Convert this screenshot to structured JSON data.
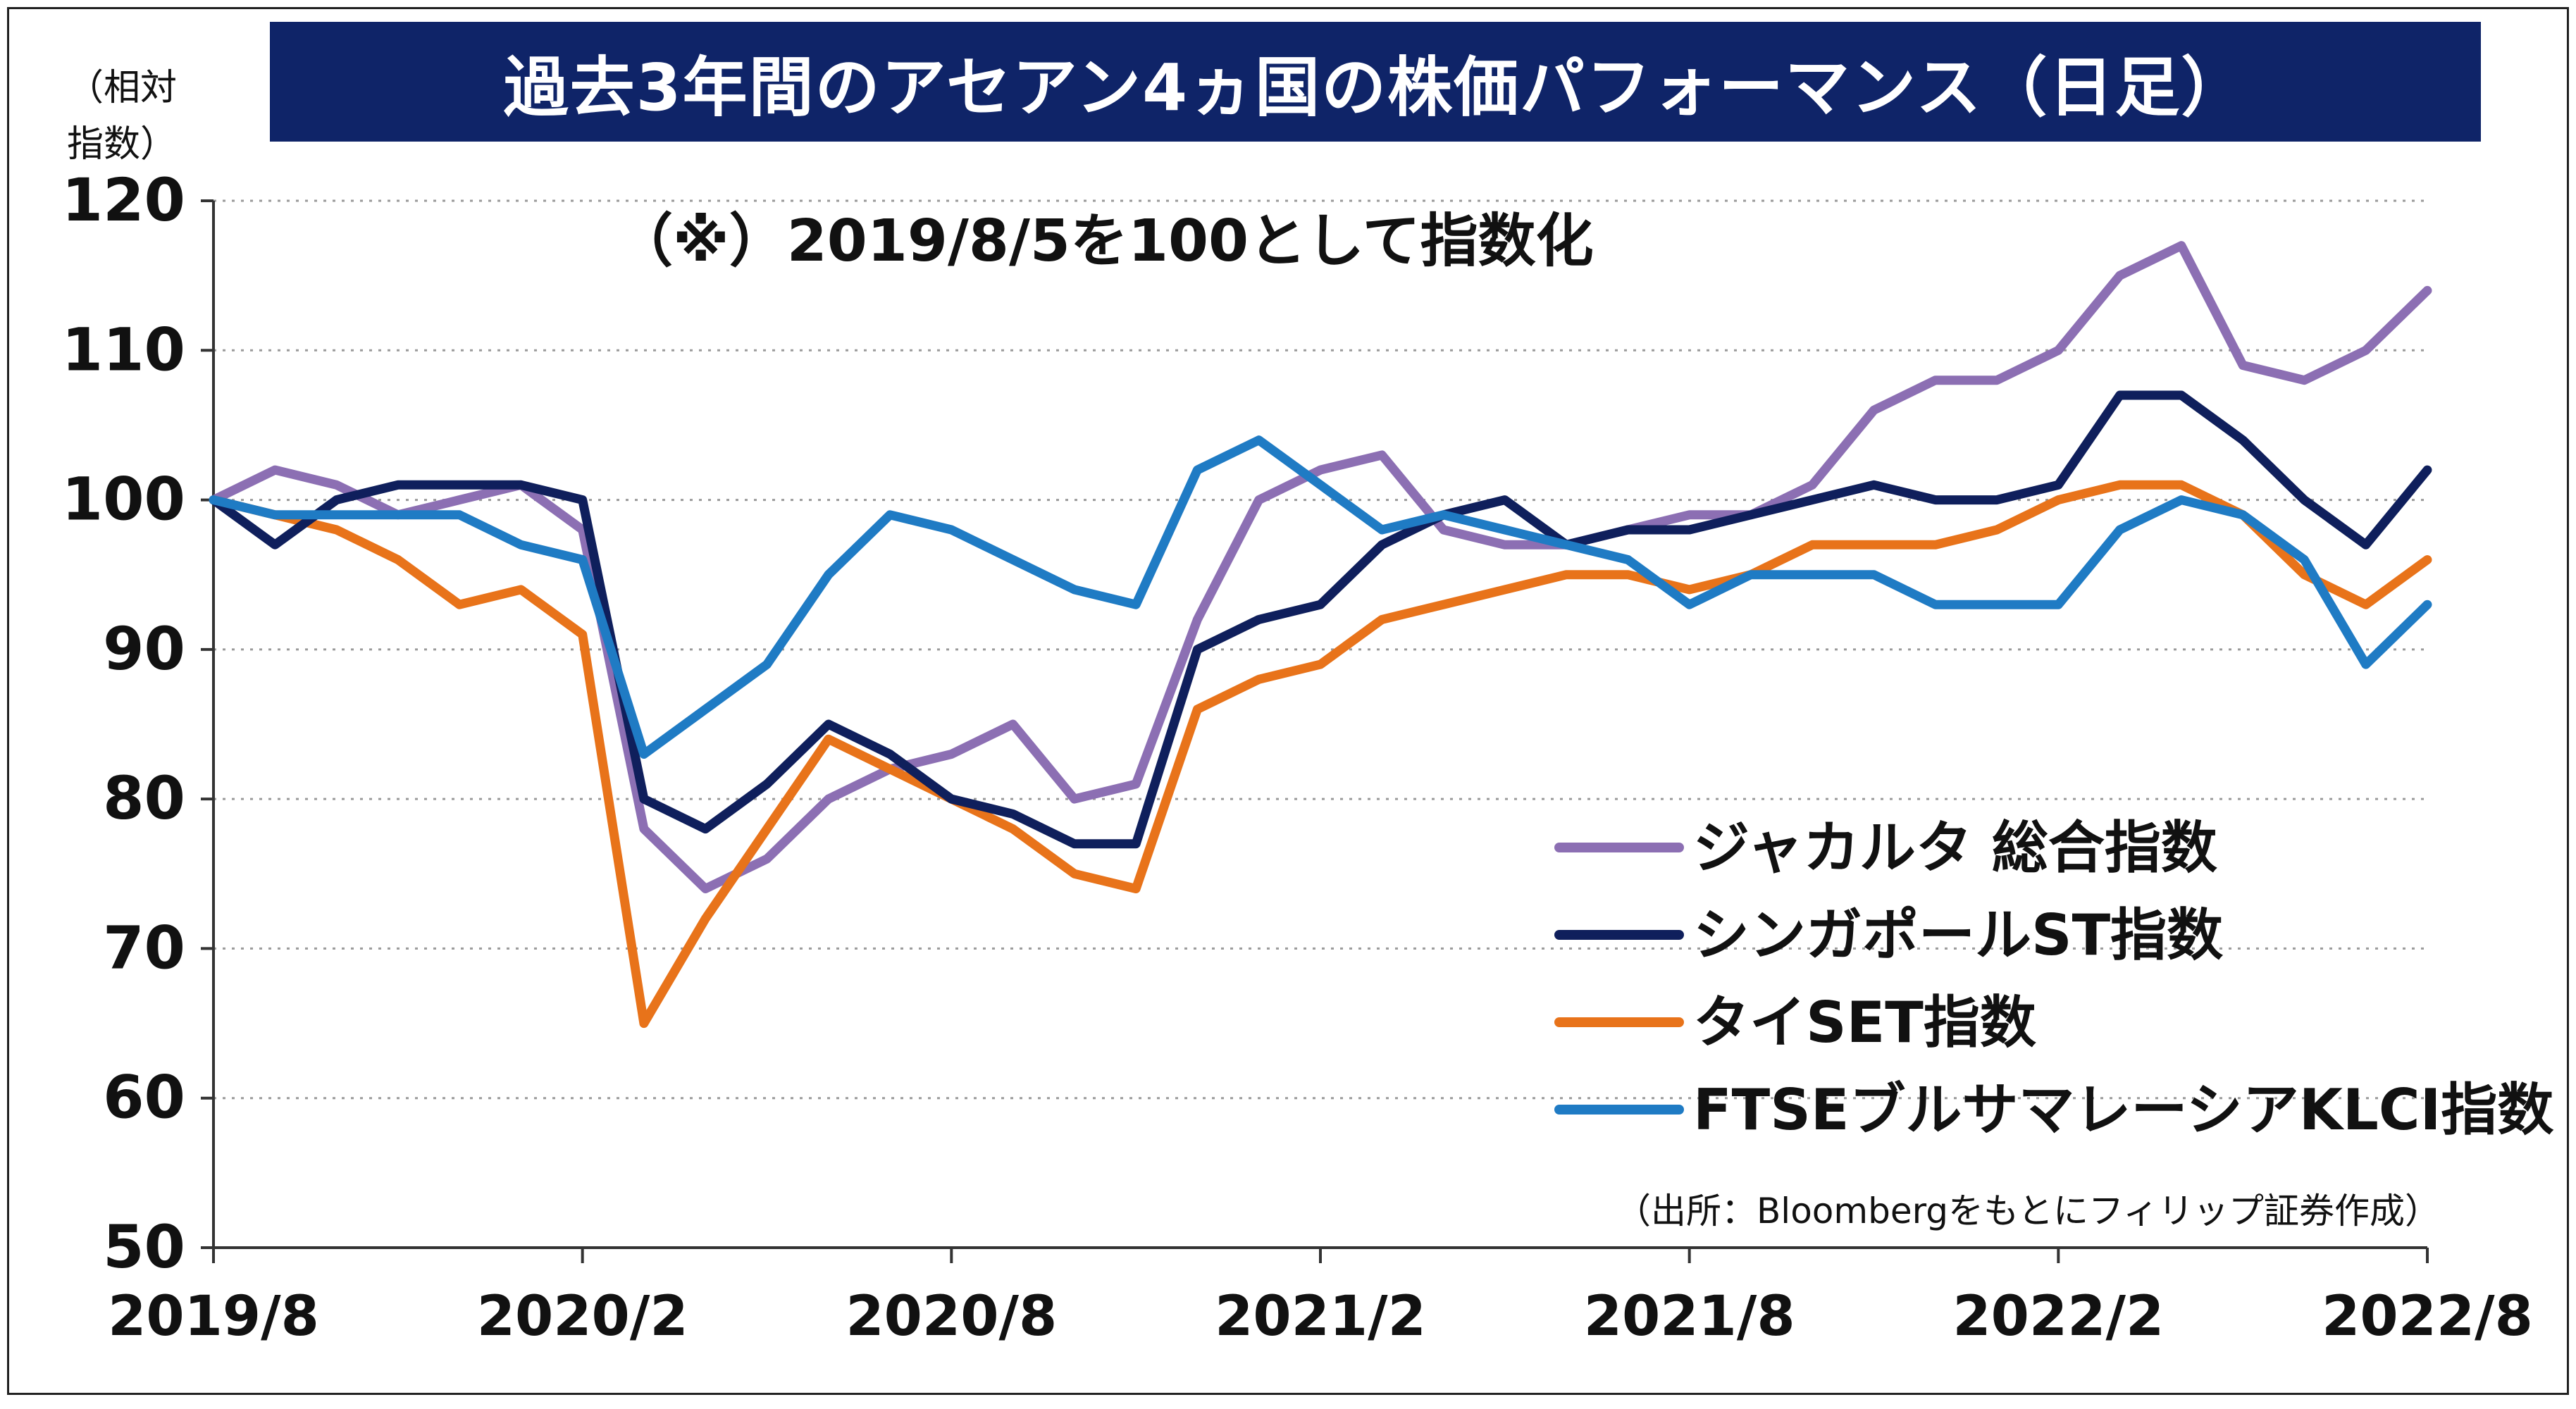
{
  "header": {
    "title": "過去3年間のアセアン4ヵ国の株価パフォーマンス（日足）",
    "unit_label": [
      "（相対",
      "指数）"
    ],
    "note": "（※）2019/8/5を100として指数化",
    "source": "（出所：Bloombergをもとにフィリップ証券作成）"
  },
  "chart_data": {
    "type": "line",
    "title": "過去3年間のアセアン4ヵ国の株価パフォーマンス（日足）",
    "ylabel": "（相対指数）",
    "ylim": [
      50,
      120
    ],
    "yticks": [
      50,
      60,
      70,
      80,
      90,
      100,
      110,
      120
    ],
    "xlim": [
      "2019-08",
      "2022-08"
    ],
    "x_tick_labels": [
      "2019/8",
      "2020/2",
      "2020/8",
      "2021/2",
      "2021/8",
      "2022/2",
      "2022/8"
    ],
    "grid": "horizontal-dotted",
    "legend_position": "lower-right",
    "x": [
      "2019-08",
      "2019-09",
      "2019-10",
      "2019-11",
      "2019-12",
      "2020-01",
      "2020-02",
      "2020-03",
      "2020-04",
      "2020-05",
      "2020-06",
      "2020-07",
      "2020-08",
      "2020-09",
      "2020-10",
      "2020-11",
      "2020-12",
      "2021-01",
      "2021-02",
      "2021-03",
      "2021-04",
      "2021-05",
      "2021-06",
      "2021-07",
      "2021-08",
      "2021-09",
      "2021-10",
      "2021-11",
      "2021-12",
      "2022-01",
      "2022-02",
      "2022-03",
      "2022-04",
      "2022-05",
      "2022-06",
      "2022-07",
      "2022-08"
    ],
    "series": [
      {
        "name": "ジャカルタ 総合指数",
        "color": "#8c6fb3",
        "values": [
          100,
          102,
          101,
          99,
          100,
          101,
          98,
          78,
          74,
          76,
          80,
          82,
          83,
          85,
          80,
          81,
          92,
          100,
          102,
          103,
          98,
          97,
          97,
          98,
          99,
          99,
          101,
          106,
          108,
          108,
          110,
          115,
          117,
          109,
          108,
          110,
          114
        ]
      },
      {
        "name": "シンガポールST指数",
        "color": "#0f1f5c",
        "values": [
          100,
          97,
          100,
          101,
          101,
          101,
          100,
          80,
          78,
          81,
          85,
          83,
          80,
          79,
          77,
          77,
          90,
          92,
          93,
          97,
          99,
          100,
          97,
          98,
          98,
          99,
          100,
          101,
          100,
          100,
          101,
          107,
          107,
          104,
          100,
          97,
          102
        ]
      },
      {
        "name": "タイSET指数",
        "color": "#e8731a",
        "values": [
          100,
          99,
          98,
          96,
          93,
          94,
          91,
          65,
          72,
          78,
          84,
          82,
          80,
          78,
          75,
          74,
          86,
          88,
          89,
          92,
          93,
          94,
          95,
          95,
          94,
          95,
          97,
          97,
          97,
          98,
          100,
          101,
          101,
          99,
          95,
          93,
          96
        ]
      },
      {
        "name": "FTSEブルサマレーシアKLCI指数",
        "color": "#1f7bc4",
        "values": [
          100,
          99,
          99,
          99,
          99,
          97,
          96,
          83,
          86,
          89,
          95,
          99,
          98,
          96,
          94,
          93,
          102,
          104,
          101,
          98,
          99,
          98,
          97,
          96,
          93,
          95,
          95,
          95,
          93,
          93,
          93,
          98,
          100,
          99,
          96,
          89,
          93
        ]
      }
    ]
  }
}
